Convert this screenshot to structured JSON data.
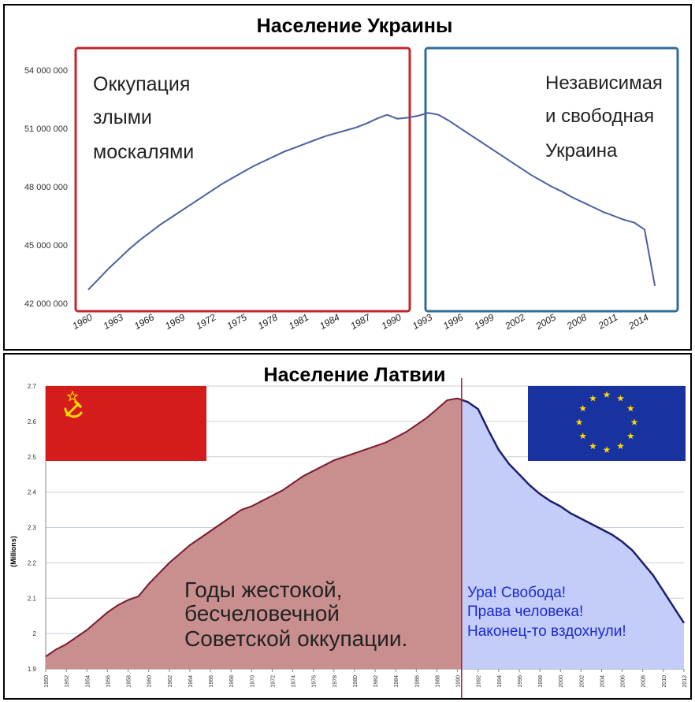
{
  "chart_data": [
    {
      "type": "line",
      "title": "Население Украины",
      "ylim": [
        42000000,
        54000000
      ],
      "y_ticks": [
        {
          "value": 54000000,
          "label": "54 000 000"
        },
        {
          "value": 51000000,
          "label": "51 000 000"
        },
        {
          "value": 48000000,
          "label": "48 000 000"
        },
        {
          "value": 45000000,
          "label": "45 000 000"
        },
        {
          "value": 42000000,
          "label": "42 000 000"
        }
      ],
      "x_ticks": [
        "1960",
        "1963",
        "1966",
        "1969",
        "1972",
        "1975",
        "1978",
        "1981",
        "1984",
        "1987",
        "1990",
        "1993",
        "1996",
        "1999",
        "2002",
        "2005",
        "2008",
        "2011",
        "2014"
      ],
      "xlim": [
        1960,
        2014
      ],
      "colors": {
        "line": "#4a5fa0",
        "box_left": "#c0272d",
        "box_right": "#2f6d9a"
      },
      "annotations": {
        "left_lines": [
          "Оккупация",
          "злыми",
          "москалями"
        ],
        "right_lines": [
          "Независимая",
          "и свободная",
          "Украина"
        ]
      },
      "series": [
        {
          "x": [
            1960,
            1961,
            1962,
            1963,
            1964,
            1965,
            1966,
            1967,
            1968,
            1969,
            1970,
            1971,
            1972,
            1973,
            1974,
            1975,
            1976,
            1977,
            1978,
            1979,
            1980,
            1981,
            1982,
            1983,
            1984,
            1985,
            1986,
            1987,
            1988,
            1989,
            1990,
            1991,
            1992,
            1993,
            1994,
            1995,
            1996,
            1997,
            1998,
            1999,
            2000,
            2001,
            2002,
            2003,
            2004,
            2005,
            2006,
            2007,
            2008,
            2009,
            2010,
            2011,
            2012,
            2013,
            2014,
            2015
          ],
          "y": [
            42700000,
            43250000,
            43800000,
            44300000,
            44800000,
            45250000,
            45650000,
            46050000,
            46400000,
            46750000,
            47100000,
            47450000,
            47800000,
            48150000,
            48450000,
            48750000,
            49050000,
            49300000,
            49550000,
            49800000,
            50000000,
            50200000,
            50400000,
            50600000,
            50750000,
            50900000,
            51050000,
            51250000,
            51500000,
            51700000,
            51500000,
            51550000,
            51650000,
            51800000,
            51700000,
            51400000,
            51050000,
            50700000,
            50350000,
            50000000,
            49650000,
            49300000,
            48950000,
            48600000,
            48300000,
            48000000,
            47750000,
            47450000,
            47200000,
            46950000,
            46700000,
            46500000,
            46300000,
            46150000,
            45800000,
            42900000
          ]
        }
      ]
    },
    {
      "type": "area",
      "title": "Население Латвии",
      "ylabel": "(Millions)",
      "ylim": [
        1.9,
        2.7
      ],
      "y_ticks": [
        "2.7",
        "2.6",
        "2.5",
        "2.4",
        "2.3",
        "2.2",
        "2.1",
        "2",
        "1.9"
      ],
      "xlim": [
        1950,
        2012
      ],
      "x_ticks": [
        "1950",
        "1952",
        "1954",
        "1956",
        "1958",
        "1960",
        "1962",
        "1964",
        "1966",
        "1968",
        "1970",
        "1972",
        "1974",
        "1976",
        "1978",
        "1980",
        "1982",
        "1984",
        "1986",
        "1988",
        "1990",
        "1992",
        "1994",
        "1996",
        "1998",
        "2000",
        "2002",
        "2004",
        "2006",
        "2008",
        "2010",
        "2012"
      ],
      "split_year": 1990.4,
      "colors": {
        "soviet_fill": "#c98f8f",
        "soviet_line": "#7a1a2a",
        "eu_fill": "#c4cdfa",
        "eu_line": "#1a1f6e",
        "divider": "#a02040",
        "ussr_flag": "#d41c1c",
        "eu_flag": "#1833a0",
        "star": "#ffd800",
        "right_text": "#1a2ad0"
      },
      "flags": [
        "ussr-flag",
        "eu-flag"
      ],
      "annotations": {
        "left_lines": [
          "Годы жестокой,",
          "бесчеловечной",
          "Советской оккупации."
        ],
        "right_lines": [
          "Ура! Свобода!",
          "Права человека!",
          "Наконец-то вздохнули!"
        ]
      },
      "series": [
        {
          "x": [
            1950,
            1951,
            1952,
            1953,
            1954,
            1955,
            1956,
            1957,
            1958,
            1959,
            1960,
            1961,
            1962,
            1963,
            1964,
            1965,
            1966,
            1967,
            1968,
            1969,
            1970,
            1971,
            1972,
            1973,
            1974,
            1975,
            1976,
            1977,
            1978,
            1979,
            1980,
            1981,
            1982,
            1983,
            1984,
            1985,
            1986,
            1987,
            1988,
            1989,
            1990,
            1991,
            1992,
            1993,
            1994,
            1995,
            1996,
            1997,
            1998,
            1999,
            2000,
            2001,
            2002,
            2003,
            2004,
            2005,
            2006,
            2007,
            2008,
            2009,
            2010,
            2011,
            2012
          ],
          "y": [
            1.935,
            1.955,
            1.97,
            1.99,
            2.01,
            2.035,
            2.06,
            2.08,
            2.095,
            2.105,
            2.14,
            2.17,
            2.2,
            2.225,
            2.25,
            2.27,
            2.29,
            2.31,
            2.33,
            2.35,
            2.36,
            2.375,
            2.39,
            2.405,
            2.425,
            2.445,
            2.46,
            2.475,
            2.49,
            2.5,
            2.51,
            2.52,
            2.53,
            2.54,
            2.555,
            2.57,
            2.59,
            2.61,
            2.635,
            2.66,
            2.665,
            2.655,
            2.635,
            2.575,
            2.52,
            2.48,
            2.45,
            2.42,
            2.395,
            2.375,
            2.36,
            2.34,
            2.325,
            2.31,
            2.295,
            2.28,
            2.26,
            2.235,
            2.2,
            2.165,
            2.12,
            2.075,
            2.03
          ]
        }
      ]
    }
  ]
}
